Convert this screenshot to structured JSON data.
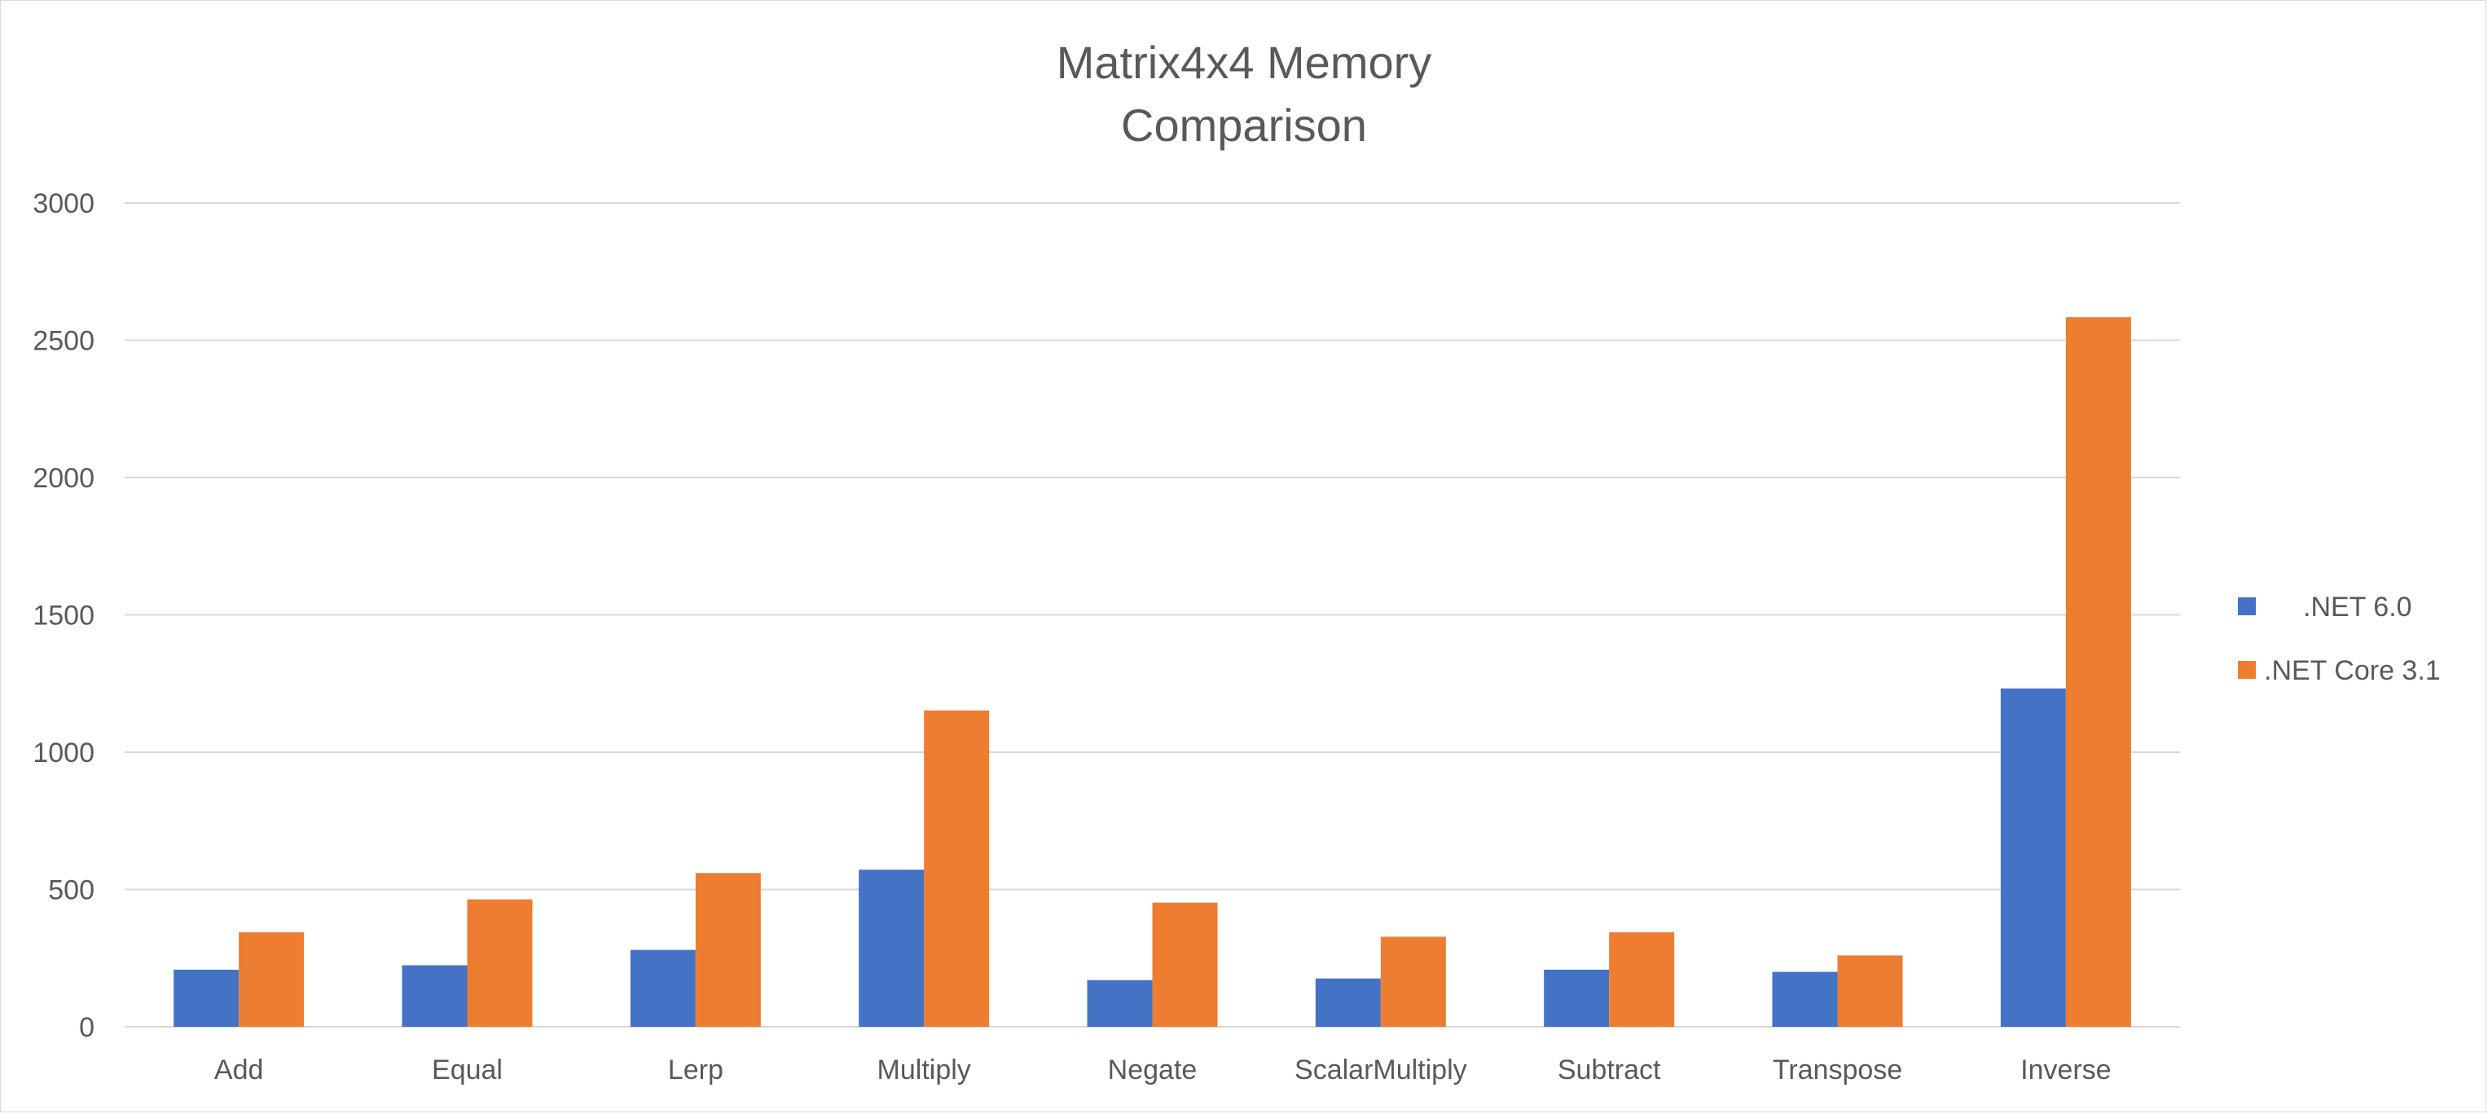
{
  "chart_data": {
    "type": "bar",
    "title_lines": [
      "Matrix4x4 Memory",
      "Comparison"
    ],
    "categories": [
      "Add",
      "Equal",
      "Lerp",
      "Multiply",
      "Negate",
      "ScalarMultiply",
      "Subtract",
      "Transpose",
      "Inverse"
    ],
    "series": [
      {
        "name": ".NET 6.0",
        "color": "#4472c4",
        "values": [
          208,
          224,
          280,
          572,
          170,
          176,
          208,
          200,
          1232
        ]
      },
      {
        "name": ".NET Core 3.1",
        "color": "#ed7d31",
        "values": [
          344,
          464,
          560,
          1152,
          452,
          328,
          344,
          260,
          2584
        ]
      }
    ],
    "ylim": [
      0,
      3000
    ],
    "yticks": [
      0,
      500,
      1000,
      1500,
      2000,
      2500,
      3000
    ],
    "grid": true,
    "legend_position": "right"
  }
}
